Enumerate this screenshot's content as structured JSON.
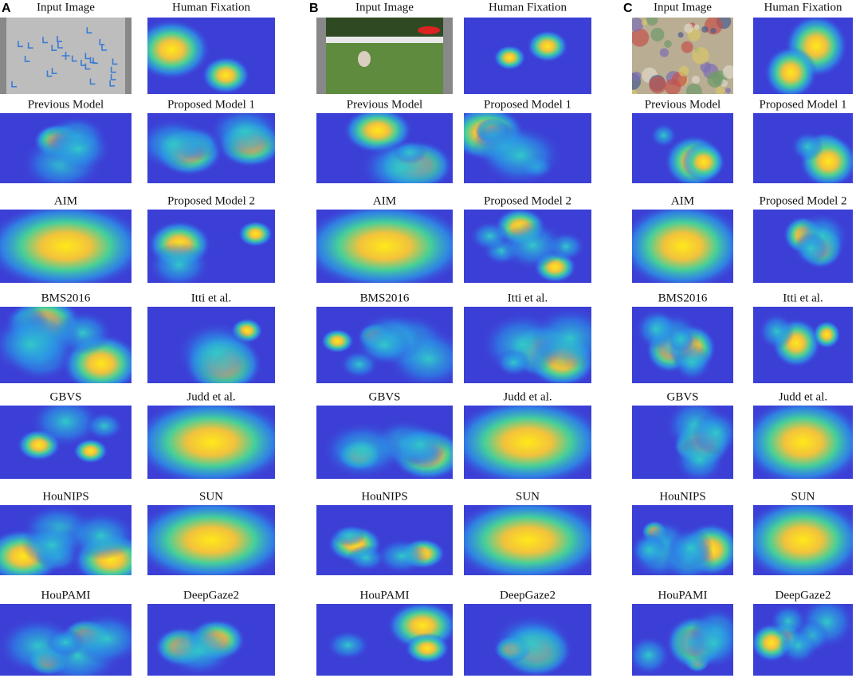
{
  "panels": [
    {
      "label": "A",
      "titles": [
        "Input Image",
        "Human Fixation",
        "Previous Model",
        "Proposed Model 1",
        "AIM",
        "Proposed Model 2",
        "BMS2016",
        "Itti et al.",
        "GBVS",
        "Judd et al.",
        "HouNIPS",
        "SUN",
        "HouPAMI",
        "DeepGaze2"
      ]
    },
    {
      "label": "B",
      "titles": [
        "Input Image",
        "Human Fixation",
        "Previous Model",
        "Proposed Model 1",
        "AIM",
        "Proposed Model 2",
        "BMS2016",
        "Itti et al.",
        "GBVS",
        "Judd et al.",
        "HouNIPS",
        "SUN",
        "HouPAMI",
        "DeepGaze2"
      ]
    },
    {
      "label": "C",
      "titles": [
        "Input Image",
        "Human Fixation",
        "Previous Model",
        "Proposed Model 1",
        "AIM",
        "Proposed Model 2",
        "BMS2016",
        "Itti et al.",
        "GBVS",
        "Judd et al.",
        "HouNIPS",
        "SUN",
        "HouPAMI",
        "DeepGaze2"
      ]
    }
  ]
}
